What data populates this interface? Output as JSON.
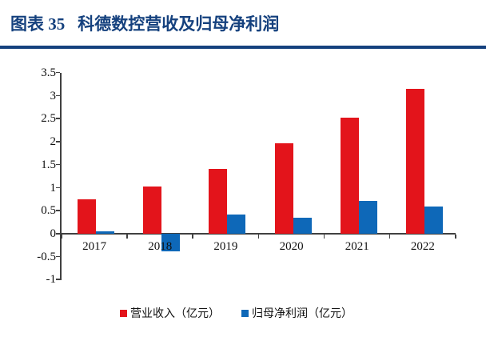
{
  "header": {
    "label": "图表 35",
    "title": "科德数控营收及归母净利润"
  },
  "chart_data": {
    "type": "bar",
    "title": "科德数控营收及归母净利润",
    "categories": [
      "2017",
      "2018",
      "2019",
      "2020",
      "2021",
      "2022"
    ],
    "series": [
      {
        "name": "营业收入（亿元）",
        "color": "#e3141b",
        "values": [
          0.75,
          1.02,
          1.41,
          1.97,
          2.53,
          3.15
        ]
      },
      {
        "name": "归母净利润（亿元）",
        "color": "#0e68b8",
        "values": [
          0.06,
          -0.38,
          0.41,
          0.34,
          0.72,
          0.6
        ]
      }
    ],
    "xlabel": "",
    "ylabel": "",
    "ylim": [
      -1,
      3.5
    ],
    "yticks": [
      3.5,
      3,
      2.5,
      2,
      1.5,
      1,
      0.5,
      0,
      -0.5,
      -1
    ],
    "grid": false,
    "legend_position": "bottom"
  },
  "colors": {
    "accent_navy": "#15417e",
    "bar_red": "#e3141b",
    "bar_blue": "#0e68b8",
    "axis": "#404040"
  }
}
